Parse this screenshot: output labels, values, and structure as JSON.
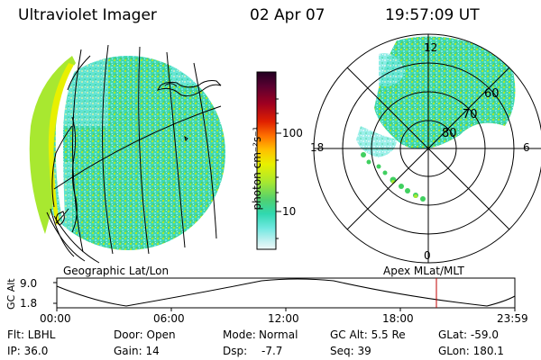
{
  "header": {
    "instrument": "Ultraviolet Imager",
    "date": "02 Apr 07",
    "time": "19:57:09 UT"
  },
  "colorbar": {
    "label": "photon cm⁻²s⁻¹",
    "tick_labels": [
      "100",
      "10"
    ],
    "colors_top_to_bottom": [
      "#220022",
      "#5a0030",
      "#a00020",
      "#e02000",
      "#ff7000",
      "#ffc000",
      "#e8f000",
      "#a8e830",
      "#50d070",
      "#30d8b0",
      "#70e8e0",
      "#c0f0f0",
      "#f0f8f8"
    ]
  },
  "left_panel": {
    "label": "Geographic Lat/Lon"
  },
  "right_panel": {
    "label": "Apex MLat/MLT",
    "mlt_labels": {
      "top": "12",
      "left": "18",
      "right": "6",
      "bottom": "0"
    },
    "lat_labels": [
      "60",
      "70",
      "80"
    ]
  },
  "altitude_plot": {
    "ylabel": "GC Alt",
    "yticks": [
      "9.0",
      "1.8"
    ],
    "xticks": [
      "00:00",
      "06:00",
      "12:00",
      "18:00",
      "23:59"
    ],
    "current_marker_time": "19:57",
    "marker_color": "#c00000"
  },
  "info": {
    "col1": [
      "Flt: LBHL",
      "IP: 36.0"
    ],
    "col2": [
      "Door: Open",
      "Gain: 14"
    ],
    "col3_label": [
      "Mode:",
      "Dsp:"
    ],
    "col3_value": [
      "Normal",
      "-7.7"
    ],
    "col4": [
      "GC Alt: 5.5 Re",
      "Seq: 39"
    ],
    "col5": [
      "GLat: -59.0",
      "GLon: 180.1"
    ]
  }
}
